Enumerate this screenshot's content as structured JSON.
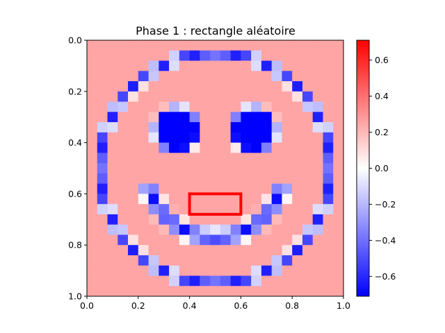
{
  "chart_data": {
    "type": "heatmap",
    "title": "Phase 1 : rectangle aléatoire",
    "xlabel": "",
    "ylabel": "",
    "xlim": [
      0.0,
      1.0
    ],
    "ylim": [
      1.0,
      0.0
    ],
    "x_ticks": [
      "0.0",
      "0.2",
      "0.4",
      "0.6",
      "0.8",
      "1.0"
    ],
    "y_ticks": [
      "0.0",
      "0.2",
      "0.4",
      "0.6",
      "0.8",
      "1.0"
    ],
    "grid": false,
    "colormap": "bwr",
    "colorbar": {
      "vmin": -0.71,
      "vmax": 0.71,
      "ticks": [
        "−0.6",
        "−0.4",
        "−0.2",
        "0.0",
        "0.2",
        "0.4",
        "0.6"
      ]
    },
    "grid_size": [
      25,
      25
    ],
    "background_value": 0.25,
    "shapes": [
      {
        "kind": "ring",
        "cx": 0.5,
        "cy": 0.5,
        "r": 0.45,
        "width": 0.03,
        "value": -0.71
      },
      {
        "kind": "disk",
        "cx": 0.35,
        "cy": 0.35,
        "r": 0.075,
        "value": -0.71
      },
      {
        "kind": "disk",
        "cx": 0.65,
        "cy": 0.35,
        "r": 0.075,
        "value": -0.71
      },
      {
        "kind": "smile-arc",
        "cx": 0.5,
        "cy": 0.5,
        "r": 0.27,
        "width": 0.045,
        "y_min": 0.6,
        "value": -0.71
      }
    ],
    "annotation": {
      "shape": "rectangle",
      "x": [
        0.4,
        0.6
      ],
      "y": [
        0.6,
        0.68
      ],
      "color": "#ff0000"
    }
  }
}
